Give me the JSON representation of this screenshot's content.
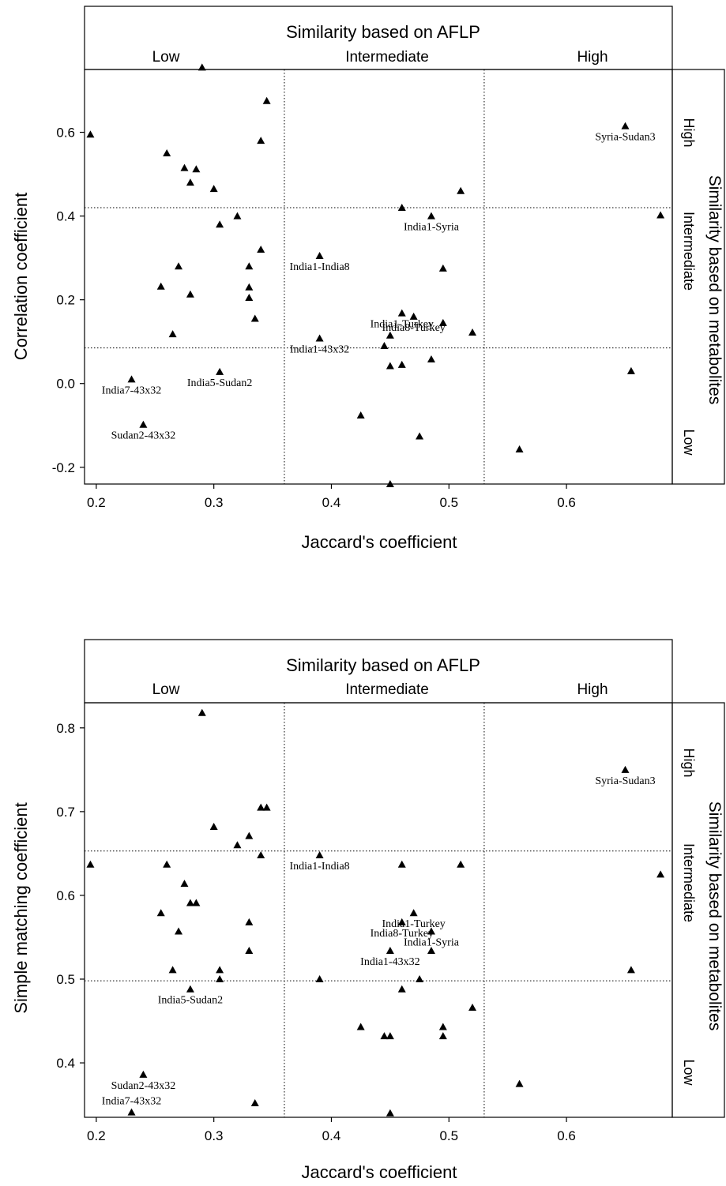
{
  "chart_data": [
    {
      "type": "scatter",
      "top_band": {
        "title": "Similarity based on AFLP",
        "labels": [
          "Low",
          "Intermediate",
          "High"
        ]
      },
      "right_band": {
        "title": "Similarity based on metabolites",
        "labels": [
          "High",
          "Intermediate",
          "Low"
        ]
      },
      "xlabel": "Jaccard's coefficient",
      "ylabel": "Correlation coefficient",
      "xlim": [
        0.19,
        0.69
      ],
      "ylim": [
        -0.24,
        0.75
      ],
      "xticks": [
        0.2,
        0.3,
        0.4,
        0.5,
        0.6
      ],
      "xtick_labels": [
        "0.2",
        "0.3",
        "0.4",
        "0.5",
        "0.6"
      ],
      "yticks": [
        0.6,
        0.4,
        0.2,
        0.0,
        -0.2
      ],
      "ytick_labels": [
        "0.6",
        "0.4",
        "0.2",
        "0.0",
        "-0.2"
      ],
      "x_cutoffs": [
        0.36,
        0.53
      ],
      "y_cutoffs": [
        0.42,
        0.085
      ],
      "points": [
        [
          0.29,
          0.755
        ],
        [
          0.345,
          0.675
        ],
        [
          0.195,
          0.595
        ],
        [
          0.34,
          0.58
        ],
        [
          0.26,
          0.55
        ],
        [
          0.275,
          0.515
        ],
        [
          0.285,
          0.512
        ],
        [
          0.28,
          0.48
        ],
        [
          0.3,
          0.465
        ],
        [
          0.32,
          0.4
        ],
        [
          0.305,
          0.38
        ],
        [
          0.34,
          0.32
        ],
        [
          0.27,
          0.28
        ],
        [
          0.33,
          0.28
        ],
        [
          0.255,
          0.232
        ],
        [
          0.33,
          0.23
        ],
        [
          0.28,
          0.213
        ],
        [
          0.33,
          0.205
        ],
        [
          0.335,
          0.155
        ],
        [
          0.265,
          0.118
        ],
        [
          0.23,
          0.01
        ],
        [
          0.305,
          0.028
        ],
        [
          0.24,
          -0.098
        ],
        [
          0.39,
          0.305
        ],
        [
          0.39,
          0.108
        ],
        [
          0.425,
          -0.076
        ],
        [
          0.445,
          0.09
        ],
        [
          0.45,
          0.115
        ],
        [
          0.45,
          0.042
        ],
        [
          0.46,
          0.045
        ],
        [
          0.45,
          -0.24
        ],
        [
          0.46,
          0.42
        ],
        [
          0.46,
          0.168
        ],
        [
          0.47,
          0.16
        ],
        [
          0.475,
          -0.126
        ],
        [
          0.485,
          0.4
        ],
        [
          0.485,
          0.058
        ],
        [
          0.495,
          0.275
        ],
        [
          0.495,
          0.145
        ],
        [
          0.51,
          0.46
        ],
        [
          0.52,
          0.122
        ],
        [
          0.56,
          -0.157
        ],
        [
          0.65,
          0.615
        ],
        [
          0.655,
          0.03
        ],
        [
          0.68,
          0.402
        ]
      ],
      "labels": [
        {
          "text": "Syria-Sudan3",
          "x": 0.65,
          "y": 0.615
        },
        {
          "text": "India1-Syria",
          "x": 0.485,
          "y": 0.4
        },
        {
          "text": "India1-India8",
          "x": 0.39,
          "y": 0.305
        },
        {
          "text": "India1-Turkey",
          "x": 0.46,
          "y": 0.168
        },
        {
          "text": "India8-Turkey",
          "x": 0.47,
          "y": 0.16
        },
        {
          "text": "India1-43x32",
          "x": 0.39,
          "y": 0.108
        },
        {
          "text": "India7-43x32",
          "x": 0.23,
          "y": 0.01
        },
        {
          "text": "India5-Sudan2",
          "x": 0.305,
          "y": 0.028
        },
        {
          "text": "Sudan2-43x32",
          "x": 0.24,
          "y": -0.098
        }
      ]
    },
    {
      "type": "scatter",
      "top_band": {
        "title": "Similarity based on AFLP",
        "labels": [
          "Low",
          "Intermediate",
          "High"
        ]
      },
      "right_band": {
        "title": "Similarity based on metabolites",
        "labels": [
          "High",
          "Intermediate",
          "Low"
        ]
      },
      "xlabel": "Jaccard's coefficient",
      "ylabel": "Simple matching coefficient",
      "xlim": [
        0.19,
        0.69
      ],
      "ylim": [
        0.335,
        0.83
      ],
      "xticks": [
        0.2,
        0.3,
        0.4,
        0.5,
        0.6
      ],
      "xtick_labels": [
        "0.2",
        "0.3",
        "0.4",
        "0.5",
        "0.6"
      ],
      "yticks": [
        0.8,
        0.7,
        0.6,
        0.5,
        0.4
      ],
      "ytick_labels": [
        "0.8",
        "0.7",
        "0.6",
        "0.5",
        "0.4"
      ],
      "x_cutoffs": [
        0.36,
        0.53
      ],
      "y_cutoffs": [
        0.653,
        0.498
      ],
      "points": [
        [
          0.29,
          0.818
        ],
        [
          0.34,
          0.705
        ],
        [
          0.345,
          0.705
        ],
        [
          0.3,
          0.682
        ],
        [
          0.33,
          0.671
        ],
        [
          0.32,
          0.66
        ],
        [
          0.34,
          0.648
        ],
        [
          0.195,
          0.637
        ],
        [
          0.26,
          0.637
        ],
        [
          0.275,
          0.614
        ],
        [
          0.28,
          0.591
        ],
        [
          0.285,
          0.591
        ],
        [
          0.255,
          0.579
        ],
        [
          0.33,
          0.568
        ],
        [
          0.27,
          0.557
        ],
        [
          0.33,
          0.534
        ],
        [
          0.265,
          0.511
        ],
        [
          0.305,
          0.511
        ],
        [
          0.305,
          0.5
        ],
        [
          0.28,
          0.488
        ],
        [
          0.24,
          0.386
        ],
        [
          0.335,
          0.352
        ],
        [
          0.23,
          0.341
        ],
        [
          0.39,
          0.648
        ],
        [
          0.39,
          0.5
        ],
        [
          0.46,
          0.637
        ],
        [
          0.51,
          0.637
        ],
        [
          0.47,
          0.579
        ],
        [
          0.46,
          0.568
        ],
        [
          0.485,
          0.557
        ],
        [
          0.45,
          0.534
        ],
        [
          0.485,
          0.534
        ],
        [
          0.475,
          0.5
        ],
        [
          0.46,
          0.488
        ],
        [
          0.52,
          0.466
        ],
        [
          0.425,
          0.443
        ],
        [
          0.495,
          0.443
        ],
        [
          0.445,
          0.432
        ],
        [
          0.45,
          0.432
        ],
        [
          0.495,
          0.432
        ],
        [
          0.45,
          0.34
        ],
        [
          0.65,
          0.75
        ],
        [
          0.68,
          0.625
        ],
        [
          0.655,
          0.511
        ],
        [
          0.56,
          0.375
        ]
      ],
      "labels": [
        {
          "text": "Syria-Sudan3",
          "x": 0.65,
          "y": 0.75
        },
        {
          "text": "India1-India8",
          "x": 0.39,
          "y": 0.648
        },
        {
          "text": "India1-Turkey",
          "x": 0.47,
          "y": 0.579
        },
        {
          "text": "India8-Turkey",
          "x": 0.46,
          "y": 0.568
        },
        {
          "text": "India1-Syria",
          "x": 0.485,
          "y": 0.557
        },
        {
          "text": "India1-43x32",
          "x": 0.45,
          "y": 0.534
        },
        {
          "text": "India5-Sudan2",
          "x": 0.28,
          "y": 0.488
        },
        {
          "text": "Sudan2-43x32",
          "x": 0.24,
          "y": 0.386
        },
        {
          "text": "India7-43x32",
          "x": 0.23,
          "y": 0.341
        }
      ]
    }
  ]
}
